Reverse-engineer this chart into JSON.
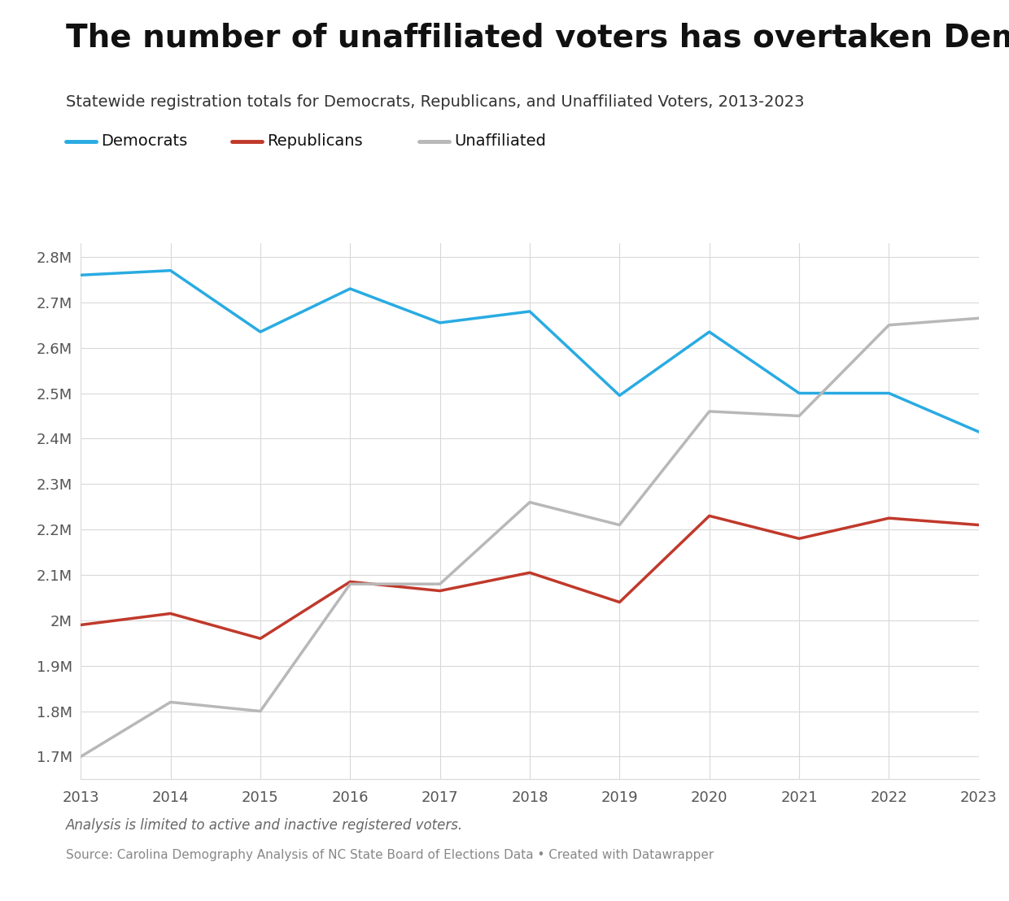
{
  "title": "The number of unaffiliated voters has overtaken Democrats",
  "subtitle": "Statewide registration totals for Democrats, Republicans, and Unaffiliated Voters, 2013-2023",
  "footnote": "Analysis is limited to active and inactive registered voters.",
  "source": "Source: Carolina Demography Analysis of NC State Board of Elections Data • Created with Datawrapper",
  "years": [
    2013,
    2014,
    2015,
    2016,
    2017,
    2018,
    2019,
    2020,
    2021,
    2022,
    2023
  ],
  "democrats": [
    2760000,
    2770000,
    2635000,
    2730000,
    2655000,
    2680000,
    2495000,
    2635000,
    2500000,
    2500000,
    2415000
  ],
  "republicans": [
    1990000,
    2015000,
    1960000,
    2085000,
    2065000,
    2105000,
    2040000,
    2230000,
    2180000,
    2225000,
    2210000
  ],
  "unaffiliated": [
    1700000,
    1820000,
    1800000,
    2080000,
    2080000,
    2260000,
    2210000,
    2460000,
    2450000,
    2650000,
    2665000
  ],
  "dem_color": "#29abe2",
  "rep_color": "#c0392b",
  "una_color": "#b8b8b8",
  "background_color": "#ffffff",
  "ylim": [
    1650000,
    2830000
  ],
  "yticks": [
    1700000,
    1800000,
    1900000,
    2000000,
    2100000,
    2200000,
    2300000,
    2400000,
    2500000,
    2600000,
    2700000,
    2800000
  ],
  "grid_color": "#d9d9d9",
  "title_fontsize": 28,
  "subtitle_fontsize": 14,
  "axis_fontsize": 13,
  "legend_fontsize": 14,
  "footnote_fontsize": 12,
  "source_fontsize": 11
}
